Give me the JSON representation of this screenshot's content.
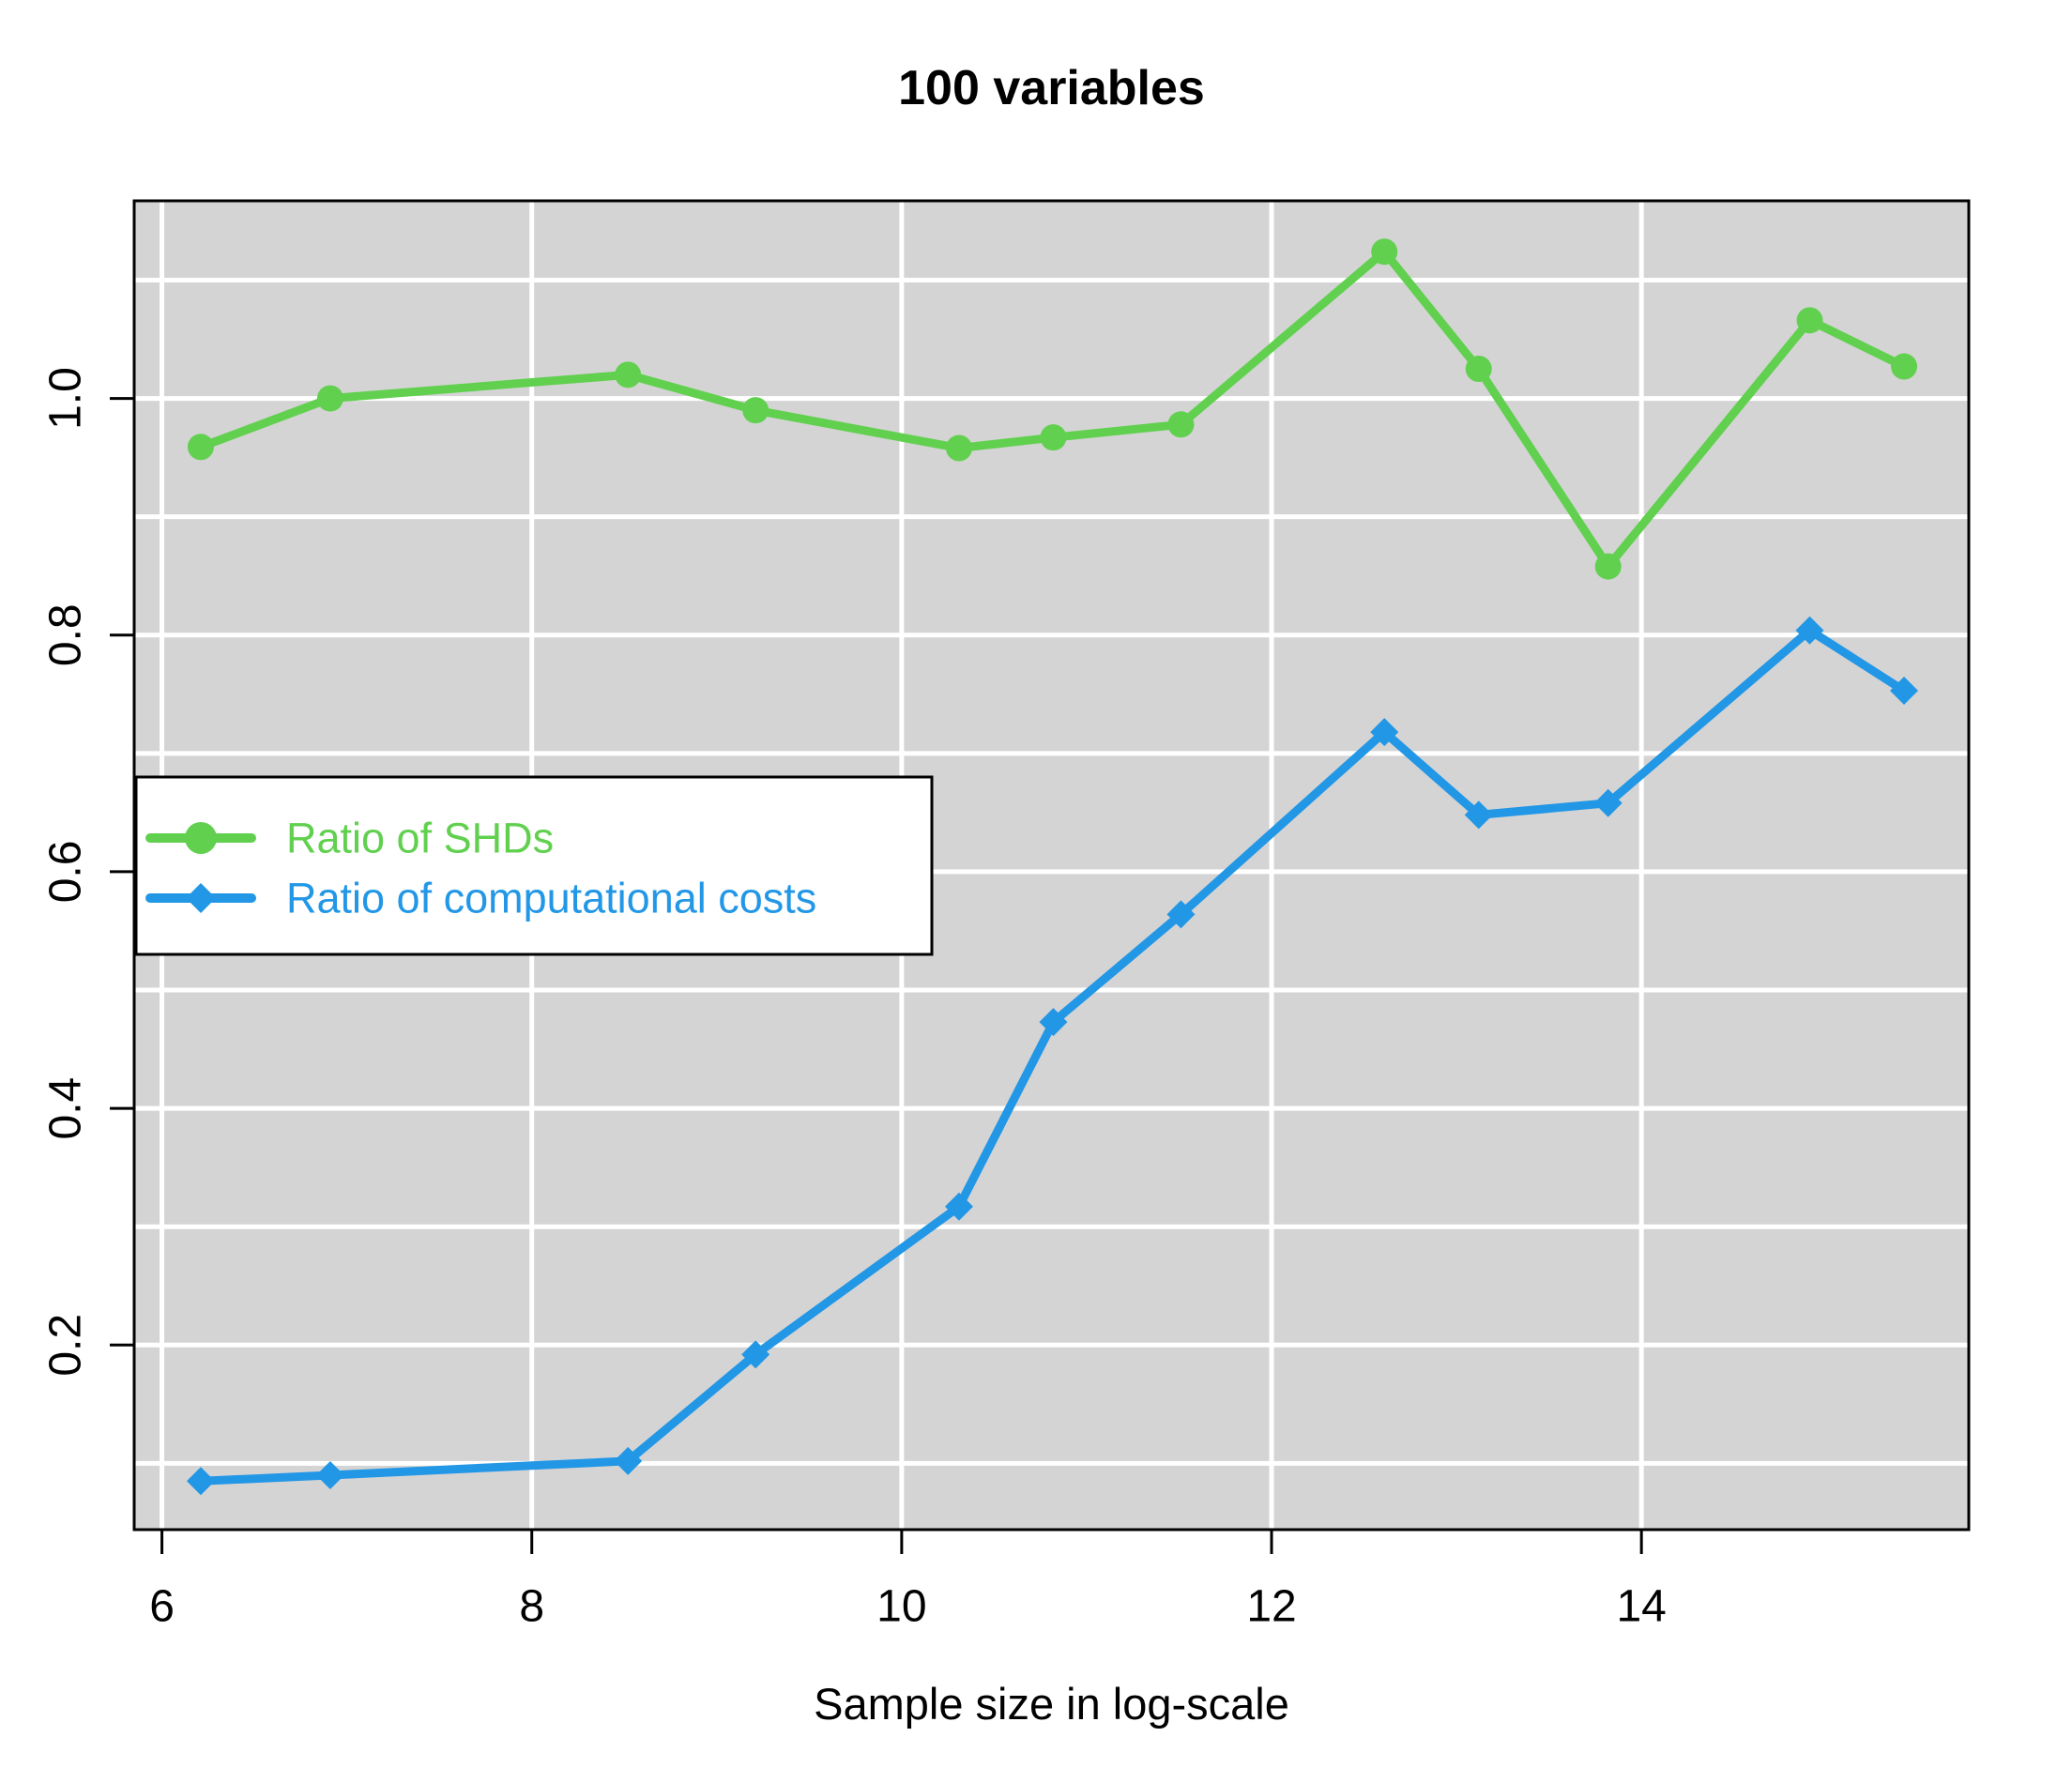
{
  "chart_data": {
    "type": "line",
    "title": "100 variables",
    "xlabel": "Sample size in log-scale",
    "ylabel": "",
    "x": [
      6.21,
      6.91,
      8.52,
      9.21,
      10.31,
      10.82,
      11.51,
      12.61,
      13.12,
      13.82,
      14.91,
      15.42
    ],
    "series": [
      {
        "name": "Ratio of SHDs",
        "color": "#61D04F",
        "marker": "circle",
        "values": [
          0.959,
          1.0,
          1.02,
          0.99,
          0.958,
          0.967,
          0.978,
          1.124,
          1.025,
          0.858,
          1.066,
          1.027
        ]
      },
      {
        "name": "Ratio of computational costs",
        "color": "#2297E6",
        "marker": "diamond",
        "values": [
          0.085,
          0.09,
          0.102,
          0.192,
          0.317,
          0.473,
          0.564,
          0.718,
          0.648,
          0.658,
          0.804,
          0.753
        ]
      }
    ],
    "x_ticks": [
      6,
      8,
      10,
      12,
      14
    ],
    "x_tick_labels": [
      "6",
      "8",
      "10",
      "12",
      "14"
    ],
    "y_ticks": [
      0.2,
      0.4,
      0.6,
      0.8,
      1.0
    ],
    "y_tick_labels": [
      "0.2",
      "0.4",
      "0.6",
      "0.8",
      "1.0"
    ],
    "y_gridlines": [
      0.1,
      0.2,
      0.3,
      0.4,
      0.5,
      0.6,
      0.7,
      0.8,
      0.9,
      1.0,
      1.1
    ],
    "xlim": [
      5.85,
      15.77
    ],
    "ylim": [
      0.044,
      1.167
    ],
    "grid": true,
    "legend_position": "left-middle",
    "colors": {
      "plot_background": "#D4D4D4",
      "grid": "#FFFFFF",
      "frame": "#000000",
      "tick_text": "#000000",
      "legend_background": "#FFFFFF",
      "legend_border": "#000000"
    }
  }
}
